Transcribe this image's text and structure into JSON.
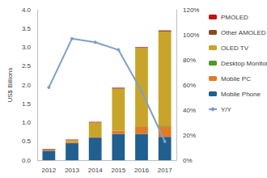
{
  "chart_data": {
    "type": "bar",
    "stacked": true,
    "grid": false,
    "legend": "right",
    "y_label": "US$ Billions",
    "categories": [
      "2012",
      "2013",
      "2014",
      "2015",
      "2016",
      "2017"
    ],
    "ylim": [
      0,
      4
    ],
    "yticks": [
      {
        "value": 0,
        "label": "0.0"
      },
      {
        "value": 0.5,
        "label": "0.5"
      },
      {
        "value": 1,
        "label": "1.0"
      },
      {
        "value": 1.5,
        "label": "1.5"
      },
      {
        "value": 2,
        "label": "2.0"
      },
      {
        "value": 2.5,
        "label": "2.5"
      },
      {
        "value": 3,
        "label": "3.0"
      },
      {
        "value": 3.5,
        "label": "3.5"
      },
      {
        "value": 4,
        "label": "4.0"
      }
    ],
    "y2lim": [
      0,
      120
    ],
    "y2ticks": [
      {
        "value": 0,
        "label": "0%"
      },
      {
        "value": 20,
        "label": "20%"
      },
      {
        "value": 40,
        "label": "40%"
      },
      {
        "value": 60,
        "label": "60%"
      },
      {
        "value": 80,
        "label": "80%"
      },
      {
        "value": 100,
        "label": "100%"
      },
      {
        "value": 120,
        "label": "120%"
      }
    ],
    "series": [
      {
        "name": "Mobile Phone",
        "color": "#215f8f",
        "values": [
          0.25,
          0.45,
          0.6,
          0.7,
          0.7,
          0.62
        ]
      },
      {
        "name": "Mobile PC",
        "color": "#e07b27",
        "values": [
          0.02,
          0.03,
          0.02,
          0.08,
          0.2,
          0.28
        ]
      },
      {
        "name": "Desktop Monitor",
        "color": "#4c9a2a",
        "values": [
          0,
          0,
          0,
          0,
          0,
          0.02
        ]
      },
      {
        "name": "OLED TV",
        "color": "#c8a52a",
        "values": [
          0,
          0.05,
          0.38,
          1.12,
          2.08,
          2.5
        ]
      },
      {
        "name": "Other AMOLED",
        "color": "#8b4a1c",
        "values": [
          0.02,
          0.01,
          0.01,
          0.02,
          0.02,
          0.02
        ]
      },
      {
        "name": "PMOLED",
        "color": "#c0141a",
        "values": [
          0.01,
          0.01,
          0.01,
          0.01,
          0.01,
          0.01
        ]
      },
      {
        "name": "Y/Y",
        "type": "line",
        "axis": "y2",
        "color": "#7f9fc4",
        "marker": "circle",
        "values": [
          58,
          97,
          94,
          88,
          55,
          15
        ]
      }
    ]
  }
}
